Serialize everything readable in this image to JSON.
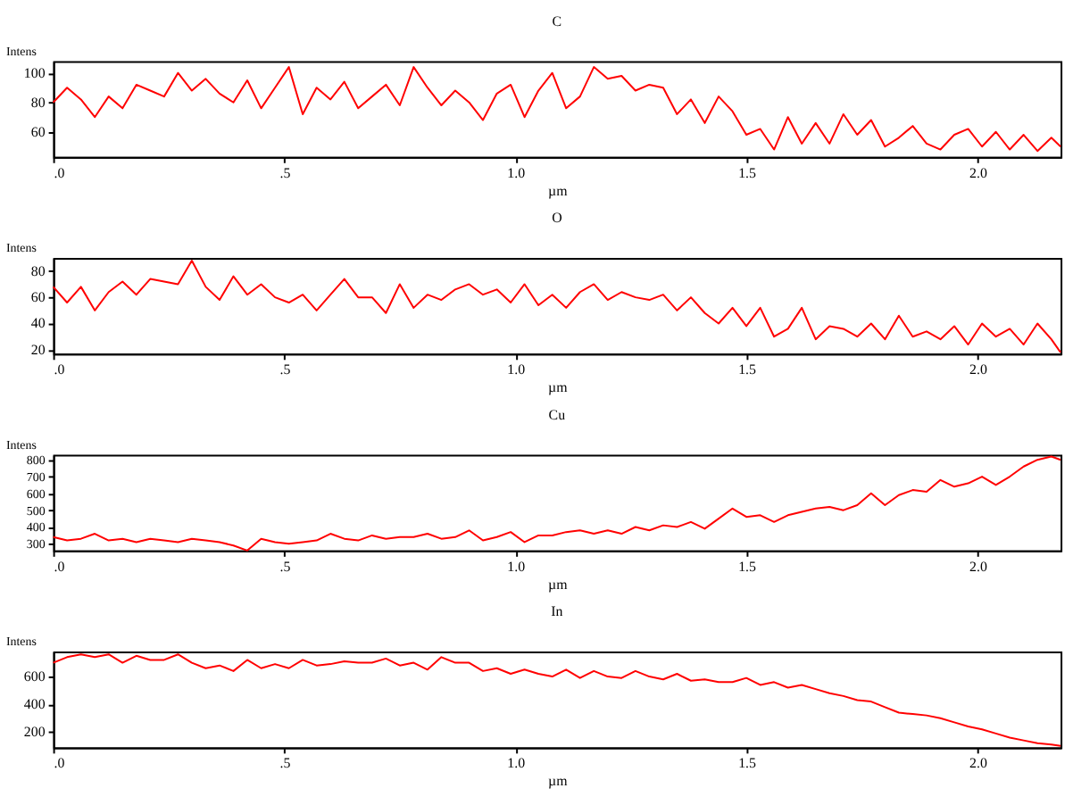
{
  "chart_data": [
    {
      "type": "line",
      "title": "C",
      "xlabel": "µm",
      "ylabel": "Intens",
      "xlim": [
        0,
        2.18
      ],
      "ylim": [
        43,
        108
      ],
      "xticks": [
        {
          "value": 0,
          "label": ".0"
        },
        {
          "value": 0.5,
          "label": ".5"
        },
        {
          "value": 1,
          "label": "1.0"
        },
        {
          "value": 1.5,
          "label": "1.5"
        },
        {
          "value": 2,
          "label": "2.0"
        }
      ],
      "yticks": [
        60,
        80,
        100
      ],
      "x": [
        0,
        0.03,
        0.06,
        0.09,
        0.12,
        0.15,
        0.18,
        0.21,
        0.24,
        0.27,
        0.3,
        0.33,
        0.36,
        0.39,
        0.42,
        0.45,
        0.48,
        0.51,
        0.54,
        0.57,
        0.6,
        0.63,
        0.66,
        0.69,
        0.72,
        0.75,
        0.78,
        0.81,
        0.84,
        0.87,
        0.9,
        0.93,
        0.96,
        0.99,
        1.02,
        1.05,
        1.08,
        1.11,
        1.14,
        1.17,
        1.2,
        1.23,
        1.26,
        1.29,
        1.32,
        1.35,
        1.38,
        1.41,
        1.44,
        1.47,
        1.5,
        1.53,
        1.56,
        1.59,
        1.62,
        1.65,
        1.68,
        1.71,
        1.74,
        1.77,
        1.8,
        1.83,
        1.86,
        1.89,
        1.92,
        1.95,
        1.98,
        2.01,
        2.04,
        2.07,
        2.1,
        2.13,
        2.16,
        2.18
      ],
      "series": [
        {
          "color": "#ff0000",
          "values": [
            80,
            90,
            82,
            70,
            84,
            76,
            92,
            88,
            84,
            100,
            88,
            96,
            86,
            80,
            95,
            76,
            90,
            104,
            72,
            90,
            82,
            94,
            76,
            84,
            92,
            78,
            104,
            90,
            78,
            88,
            80,
            68,
            86,
            92,
            70,
            88,
            100,
            76,
            84,
            104,
            96,
            98,
            88,
            92,
            90,
            72,
            82,
            66,
            84,
            74,
            58,
            62,
            48,
            70,
            52,
            66,
            52,
            72,
            58,
            68,
            50,
            56,
            64,
            52,
            48,
            58,
            62,
            50,
            60,
            48,
            58,
            47,
            56,
            50
          ]
        }
      ]
    },
    {
      "type": "line",
      "title": "O",
      "xlabel": "µm",
      "ylabel": "Intens",
      "xlim": [
        0,
        2.18
      ],
      "ylim": [
        17,
        90
      ],
      "xticks": [
        {
          "value": 0,
          "label": ".0"
        },
        {
          "value": 0.5,
          "label": ".5"
        },
        {
          "value": 1,
          "label": "1.0"
        },
        {
          "value": 1.5,
          "label": "1.5"
        },
        {
          "value": 2,
          "label": "2.0"
        }
      ],
      "yticks": [
        20,
        40,
        60,
        80
      ],
      "x": [
        0,
        0.03,
        0.06,
        0.09,
        0.12,
        0.15,
        0.18,
        0.21,
        0.24,
        0.27,
        0.3,
        0.33,
        0.36,
        0.39,
        0.42,
        0.45,
        0.48,
        0.51,
        0.54,
        0.57,
        0.6,
        0.63,
        0.66,
        0.69,
        0.72,
        0.75,
        0.78,
        0.81,
        0.84,
        0.87,
        0.9,
        0.93,
        0.96,
        0.99,
        1.02,
        1.05,
        1.08,
        1.11,
        1.14,
        1.17,
        1.2,
        1.23,
        1.26,
        1.29,
        1.32,
        1.35,
        1.38,
        1.41,
        1.44,
        1.47,
        1.5,
        1.53,
        1.56,
        1.59,
        1.62,
        1.65,
        1.68,
        1.71,
        1.74,
        1.77,
        1.8,
        1.83,
        1.86,
        1.89,
        1.92,
        1.95,
        1.98,
        2.01,
        2.04,
        2.07,
        2.1,
        2.13,
        2.16,
        2.18
      ],
      "series": [
        {
          "color": "#ff0000",
          "values": [
            68,
            56,
            68,
            50,
            64,
            72,
            62,
            74,
            72,
            70,
            88,
            68,
            58,
            76,
            62,
            70,
            60,
            56,
            62,
            50,
            62,
            74,
            60,
            60,
            48,
            70,
            52,
            62,
            58,
            66,
            70,
            62,
            66,
            56,
            70,
            54,
            62,
            52,
            64,
            70,
            58,
            64,
            60,
            58,
            62,
            50,
            60,
            48,
            40,
            52,
            38,
            52,
            30,
            36,
            52,
            28,
            38,
            36,
            30,
            40,
            28,
            46,
            30,
            34,
            28,
            38,
            24,
            40,
            30,
            36,
            24,
            40,
            28,
            18
          ]
        }
      ]
    },
    {
      "type": "line",
      "title": "Cu",
      "xlabel": "µm",
      "ylabel": "Intens",
      "xlim": [
        0,
        2.18
      ],
      "ylim": [
        260,
        830
      ],
      "xticks": [
        {
          "value": 0,
          "label": ".0"
        },
        {
          "value": 0.5,
          "label": ".5"
        },
        {
          "value": 1,
          "label": "1.0"
        },
        {
          "value": 1.5,
          "label": "1.5"
        },
        {
          "value": 2,
          "label": "2.0"
        }
      ],
      "yticks": [
        300,
        400,
        500,
        600,
        700,
        800
      ],
      "x": [
        0,
        0.03,
        0.06,
        0.09,
        0.12,
        0.15,
        0.18,
        0.21,
        0.24,
        0.27,
        0.3,
        0.33,
        0.36,
        0.39,
        0.42,
        0.45,
        0.48,
        0.51,
        0.54,
        0.57,
        0.6,
        0.63,
        0.66,
        0.69,
        0.72,
        0.75,
        0.78,
        0.81,
        0.84,
        0.87,
        0.9,
        0.93,
        0.96,
        0.99,
        1.02,
        1.05,
        1.08,
        1.11,
        1.14,
        1.17,
        1.2,
        1.23,
        1.26,
        1.29,
        1.32,
        1.35,
        1.38,
        1.41,
        1.44,
        1.47,
        1.5,
        1.53,
        1.56,
        1.59,
        1.62,
        1.65,
        1.68,
        1.71,
        1.74,
        1.77,
        1.8,
        1.83,
        1.86,
        1.89,
        1.92,
        1.95,
        1.98,
        2.01,
        2.04,
        2.07,
        2.1,
        2.13,
        2.16,
        2.18
      ],
      "series": [
        {
          "color": "#ff0000",
          "values": [
            340,
            320,
            330,
            360,
            320,
            330,
            310,
            330,
            320,
            310,
            330,
            320,
            310,
            290,
            260,
            330,
            310,
            300,
            310,
            320,
            360,
            330,
            320,
            350,
            330,
            340,
            340,
            360,
            330,
            340,
            380,
            320,
            340,
            370,
            310,
            350,
            350,
            370,
            380,
            360,
            380,
            360,
            400,
            380,
            410,
            400,
            430,
            390,
            450,
            510,
            460,
            470,
            430,
            470,
            490,
            510,
            520,
            500,
            530,
            600,
            530,
            590,
            620,
            610,
            680,
            640,
            660,
            700,
            650,
            700,
            760,
            800,
            820,
            800
          ]
        }
      ]
    },
    {
      "type": "line",
      "title": "In",
      "xlabel": "µm",
      "ylabel": "Intens",
      "xlim": [
        0,
        2.18
      ],
      "ylim": [
        90,
        780
      ],
      "xticks": [
        {
          "value": 0,
          "label": ".0"
        },
        {
          "value": 0.5,
          "label": ".5"
        },
        {
          "value": 1,
          "label": "1.0"
        },
        {
          "value": 1.5,
          "label": "1.5"
        },
        {
          "value": 2,
          "label": "2.0"
        }
      ],
      "yticks": [
        200,
        400,
        600
      ],
      "x": [
        0,
        0.03,
        0.06,
        0.09,
        0.12,
        0.15,
        0.18,
        0.21,
        0.24,
        0.27,
        0.3,
        0.33,
        0.36,
        0.39,
        0.42,
        0.45,
        0.48,
        0.51,
        0.54,
        0.57,
        0.6,
        0.63,
        0.66,
        0.69,
        0.72,
        0.75,
        0.78,
        0.81,
        0.84,
        0.87,
        0.9,
        0.93,
        0.96,
        0.99,
        1.02,
        1.05,
        1.08,
        1.11,
        1.14,
        1.17,
        1.2,
        1.23,
        1.26,
        1.29,
        1.32,
        1.35,
        1.38,
        1.41,
        1.44,
        1.47,
        1.5,
        1.53,
        1.56,
        1.59,
        1.62,
        1.65,
        1.68,
        1.71,
        1.74,
        1.77,
        1.8,
        1.83,
        1.86,
        1.89,
        1.92,
        1.95,
        1.98,
        2.01,
        2.04,
        2.07,
        2.1,
        2.13,
        2.16,
        2.18
      ],
      "series": [
        {
          "color": "#ff0000",
          "values": [
            700,
            740,
            760,
            740,
            760,
            700,
            750,
            720,
            720,
            760,
            700,
            660,
            680,
            640,
            720,
            660,
            690,
            660,
            720,
            680,
            690,
            710,
            700,
            700,
            730,
            680,
            700,
            650,
            740,
            700,
            700,
            640,
            660,
            620,
            650,
            620,
            600,
            650,
            590,
            640,
            600,
            590,
            640,
            600,
            580,
            620,
            570,
            580,
            560,
            560,
            590,
            540,
            560,
            520,
            540,
            510,
            480,
            460,
            430,
            420,
            380,
            340,
            330,
            320,
            300,
            270,
            240,
            220,
            190,
            160,
            140,
            120,
            110,
            100
          ]
        }
      ]
    }
  ]
}
